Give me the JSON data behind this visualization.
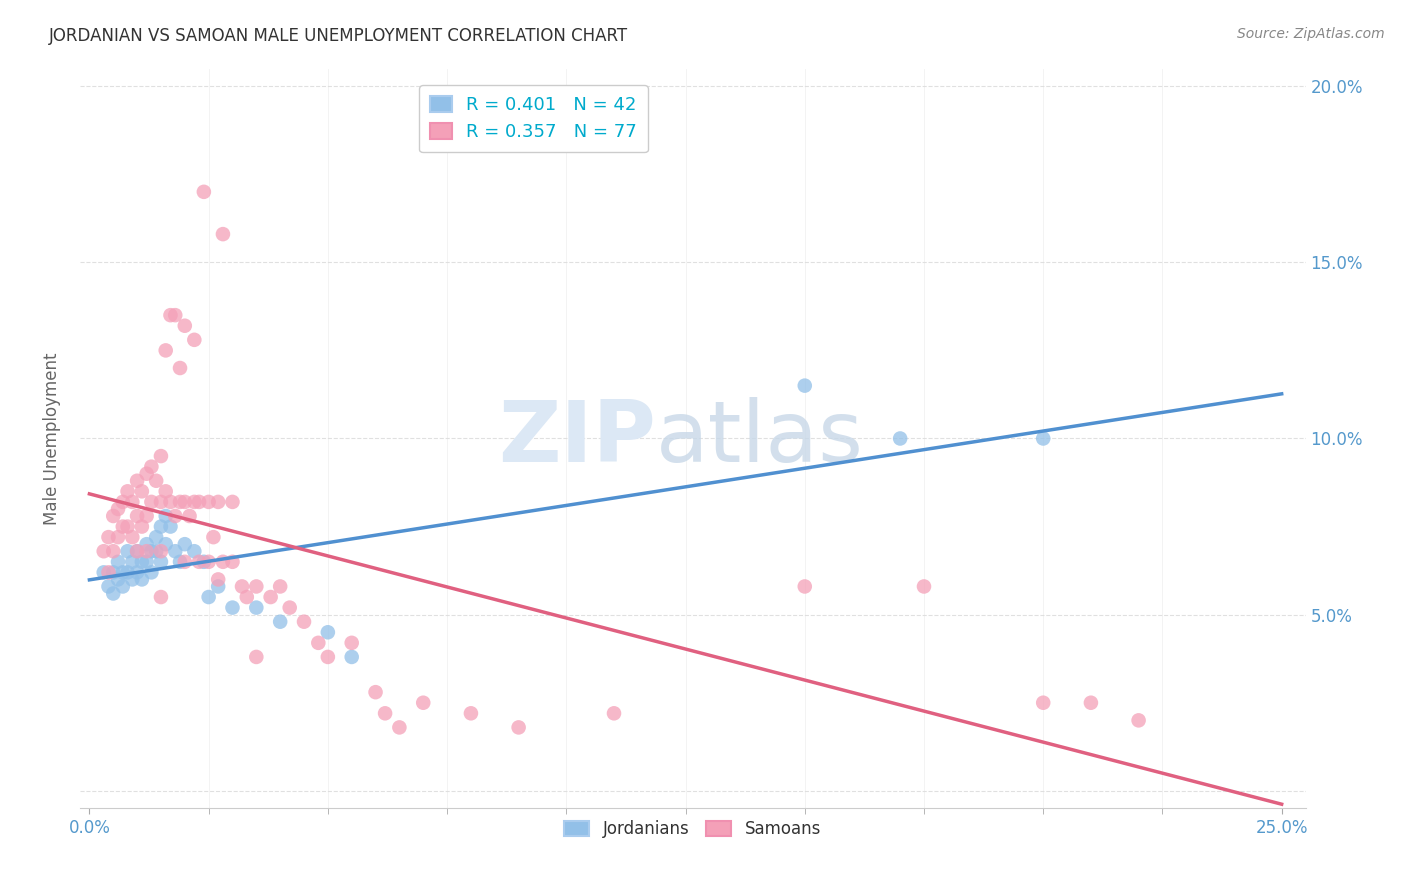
{
  "title": "JORDANIAN VS SAMOAN MALE UNEMPLOYMENT CORRELATION CHART",
  "source": "Source: ZipAtlas.com",
  "ylabel": "Male Unemployment",
  "xtick_vals": [
    0.0,
    0.25
  ],
  "xtick_labels": [
    "0.0%",
    "25.0%"
  ],
  "xtick_minor_vals": [
    0.025,
    0.05,
    0.075,
    0.1,
    0.125,
    0.15,
    0.175,
    0.2,
    0.225
  ],
  "ytick_vals": [
    0.0,
    0.05,
    0.1,
    0.15,
    0.2
  ],
  "ytick_labels": [
    "",
    "5.0%",
    "10.0%",
    "15.0%",
    "20.0%"
  ],
  "xlim": [
    -0.002,
    0.255
  ],
  "ylim": [
    -0.005,
    0.205
  ],
  "jordanian_color": "#92c0e8",
  "samoan_color": "#f4a0b8",
  "jordanian_line_color": "#5090d0",
  "samoan_line_color": "#e06080",
  "watermark_color": "#dce8f5",
  "background_color": "#ffffff",
  "grid_color": "#dddddd",
  "title_color": "#333333",
  "axis_label_color": "#666666",
  "right_ytick_color": "#5599cc",
  "legend_text_color": "#00aacc",
  "jordanian_points": [
    [
      0.003,
      0.062
    ],
    [
      0.004,
      0.058
    ],
    [
      0.005,
      0.062
    ],
    [
      0.005,
      0.056
    ],
    [
      0.006,
      0.065
    ],
    [
      0.006,
      0.06
    ],
    [
      0.007,
      0.062
    ],
    [
      0.007,
      0.058
    ],
    [
      0.008,
      0.068
    ],
    [
      0.008,
      0.062
    ],
    [
      0.009,
      0.065
    ],
    [
      0.009,
      0.06
    ],
    [
      0.01,
      0.068
    ],
    [
      0.01,
      0.062
    ],
    [
      0.011,
      0.065
    ],
    [
      0.011,
      0.06
    ],
    [
      0.012,
      0.07
    ],
    [
      0.012,
      0.065
    ],
    [
      0.013,
      0.068
    ],
    [
      0.013,
      0.062
    ],
    [
      0.014,
      0.072
    ],
    [
      0.014,
      0.068
    ],
    [
      0.015,
      0.075
    ],
    [
      0.015,
      0.065
    ],
    [
      0.016,
      0.078
    ],
    [
      0.016,
      0.07
    ],
    [
      0.017,
      0.075
    ],
    [
      0.018,
      0.068
    ],
    [
      0.019,
      0.065
    ],
    [
      0.02,
      0.07
    ],
    [
      0.022,
      0.068
    ],
    [
      0.024,
      0.065
    ],
    [
      0.025,
      0.055
    ],
    [
      0.027,
      0.058
    ],
    [
      0.03,
      0.052
    ],
    [
      0.035,
      0.052
    ],
    [
      0.04,
      0.048
    ],
    [
      0.05,
      0.045
    ],
    [
      0.055,
      0.038
    ],
    [
      0.15,
      0.115
    ],
    [
      0.17,
      0.1
    ],
    [
      0.2,
      0.1
    ]
  ],
  "samoan_points": [
    [
      0.003,
      0.068
    ],
    [
      0.004,
      0.072
    ],
    [
      0.004,
      0.062
    ],
    [
      0.005,
      0.078
    ],
    [
      0.005,
      0.068
    ],
    [
      0.006,
      0.08
    ],
    [
      0.006,
      0.072
    ],
    [
      0.007,
      0.082
    ],
    [
      0.007,
      0.075
    ],
    [
      0.008,
      0.085
    ],
    [
      0.008,
      0.075
    ],
    [
      0.009,
      0.082
    ],
    [
      0.009,
      0.072
    ],
    [
      0.01,
      0.088
    ],
    [
      0.01,
      0.078
    ],
    [
      0.01,
      0.068
    ],
    [
      0.011,
      0.085
    ],
    [
      0.011,
      0.075
    ],
    [
      0.012,
      0.09
    ],
    [
      0.012,
      0.078
    ],
    [
      0.012,
      0.068
    ],
    [
      0.013,
      0.092
    ],
    [
      0.013,
      0.082
    ],
    [
      0.014,
      0.088
    ],
    [
      0.015,
      0.095
    ],
    [
      0.015,
      0.082
    ],
    [
      0.015,
      0.068
    ],
    [
      0.015,
      0.055
    ],
    [
      0.016,
      0.125
    ],
    [
      0.016,
      0.085
    ],
    [
      0.017,
      0.135
    ],
    [
      0.017,
      0.082
    ],
    [
      0.018,
      0.135
    ],
    [
      0.018,
      0.078
    ],
    [
      0.019,
      0.12
    ],
    [
      0.019,
      0.082
    ],
    [
      0.02,
      0.132
    ],
    [
      0.02,
      0.082
    ],
    [
      0.02,
      0.065
    ],
    [
      0.021,
      0.078
    ],
    [
      0.022,
      0.128
    ],
    [
      0.022,
      0.082
    ],
    [
      0.023,
      0.082
    ],
    [
      0.023,
      0.065
    ],
    [
      0.024,
      0.17
    ],
    [
      0.025,
      0.082
    ],
    [
      0.025,
      0.065
    ],
    [
      0.026,
      0.072
    ],
    [
      0.027,
      0.082
    ],
    [
      0.027,
      0.06
    ],
    [
      0.028,
      0.158
    ],
    [
      0.028,
      0.065
    ],
    [
      0.03,
      0.082
    ],
    [
      0.03,
      0.065
    ],
    [
      0.032,
      0.058
    ],
    [
      0.033,
      0.055
    ],
    [
      0.035,
      0.058
    ],
    [
      0.035,
      0.038
    ],
    [
      0.038,
      0.055
    ],
    [
      0.04,
      0.058
    ],
    [
      0.042,
      0.052
    ],
    [
      0.045,
      0.048
    ],
    [
      0.048,
      0.042
    ],
    [
      0.05,
      0.038
    ],
    [
      0.055,
      0.042
    ],
    [
      0.06,
      0.028
    ],
    [
      0.062,
      0.022
    ],
    [
      0.065,
      0.018
    ],
    [
      0.07,
      0.025
    ],
    [
      0.08,
      0.022
    ],
    [
      0.09,
      0.018
    ],
    [
      0.11,
      0.022
    ],
    [
      0.15,
      0.058
    ],
    [
      0.175,
      0.058
    ],
    [
      0.2,
      0.025
    ],
    [
      0.21,
      0.025
    ],
    [
      0.22,
      0.02
    ]
  ]
}
